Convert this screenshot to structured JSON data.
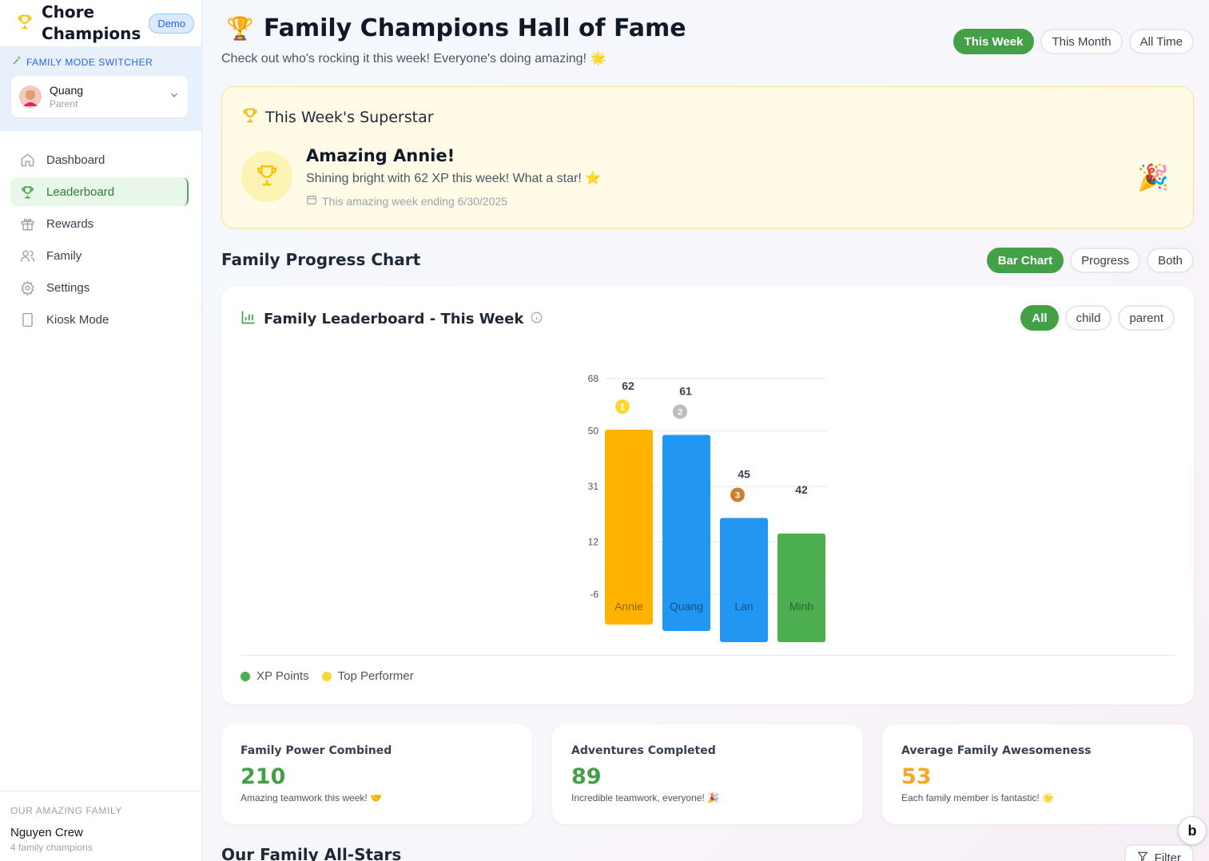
{
  "app": {
    "title_line1": "Chore",
    "title_line2": "Champions",
    "badge": "Demo"
  },
  "mode_switcher": {
    "label": "FAMILY MODE SWITCHER",
    "user_name": "Quang",
    "user_role": "Parent"
  },
  "nav": [
    {
      "label": "Dashboard",
      "icon": "home-icon"
    },
    {
      "label": "Leaderboard",
      "icon": "trophy-icon",
      "active": true
    },
    {
      "label": "Rewards",
      "icon": "gift-icon"
    },
    {
      "label": "Family",
      "icon": "users-icon"
    },
    {
      "label": "Settings",
      "icon": "gear-icon"
    },
    {
      "label": "Kiosk Mode",
      "icon": "tablet-icon"
    }
  ],
  "family_footer": {
    "label": "OUR AMAZING FAMILY",
    "name": "Nguyen Crew",
    "sub": "4 family champions"
  },
  "header": {
    "title": "Family Champions Hall of Fame",
    "subtitle": "Check out who's rocking it this week! Everyone's doing amazing! 🌟",
    "tabs": [
      "This Week",
      "This Month",
      "All Time"
    ],
    "active_tab": "This Week"
  },
  "superstar": {
    "heading": "This Week's Superstar",
    "name": "Amazing Annie!",
    "message": "Shining bright with 62 XP this week! What a star! ⭐",
    "date": "This amazing week ending 6/30/2025",
    "emoji": "🎉"
  },
  "progress": {
    "title": "Family Progress Chart",
    "view_tabs": [
      "Bar Chart",
      "Progress",
      "Both"
    ],
    "active_view": "Bar Chart"
  },
  "chart_card": {
    "title": "Family Leaderboard - This Week",
    "filters": [
      "All",
      "child",
      "parent"
    ],
    "active_filter": "All",
    "legend": [
      {
        "label": "XP Points",
        "color": "#4caf50"
      },
      {
        "label": "Top Performer",
        "color": "#fdd835"
      }
    ]
  },
  "chart_data": {
    "type": "bar",
    "categories": [
      "Annie",
      "Quang",
      "Lan",
      "Minh"
    ],
    "values": [
      62,
      61,
      45,
      42
    ],
    "ranks": [
      "1",
      "2",
      "3",
      ""
    ],
    "colors": [
      "#ffb300",
      "#2196f3",
      "#2196f3",
      "#4caf50"
    ],
    "rank_colors": [
      "#fdd835",
      "#bdbdbd",
      "#cd7f32",
      ""
    ],
    "yticks": [
      68,
      50,
      31,
      12,
      -6
    ],
    "ylim": [
      -6,
      68
    ],
    "grid": true
  },
  "stats": [
    {
      "label": "Family Power Combined",
      "value": "210",
      "sub": "Amazing teamwork this week! 🤝",
      "color": "#43a047"
    },
    {
      "label": "Adventures Completed",
      "value": "89",
      "sub": "Incredible teamwork, everyone! 🎉",
      "color": "#43a047"
    },
    {
      "label": "Average Family Awesomeness",
      "value": "53",
      "sub": "Each family member is fantastic! 🌟",
      "color": "#f9a825"
    }
  ],
  "allstars": {
    "title": "Our Family All-Stars",
    "filter_label": "Filter"
  },
  "help_bubble": "b"
}
